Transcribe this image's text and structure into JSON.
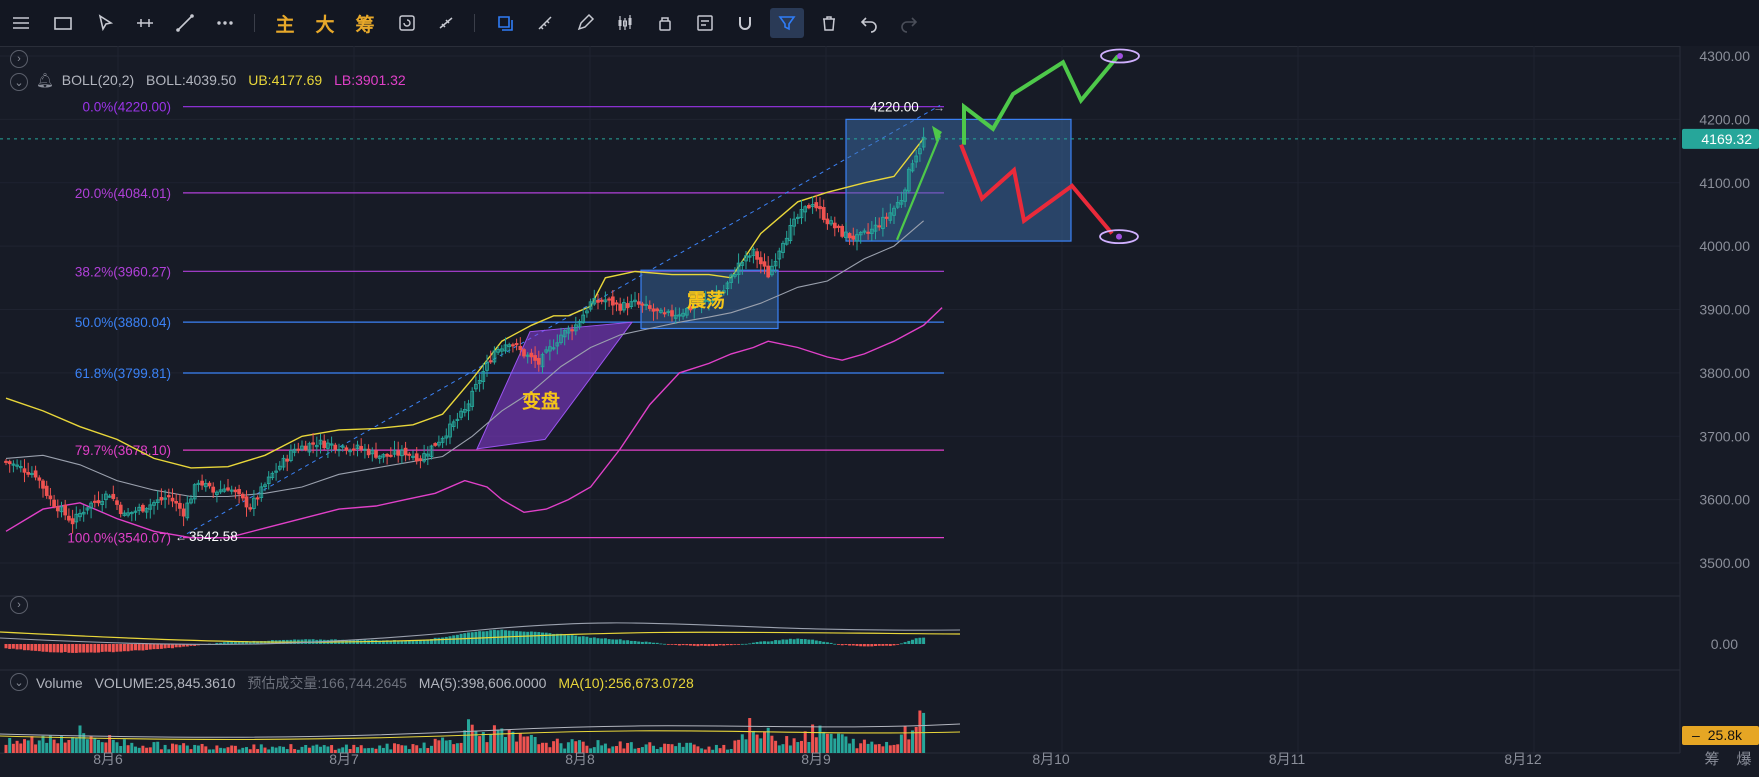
{
  "toolbar": {
    "left_tools": [
      {
        "name": "menu-icon"
      },
      {
        "name": "rectangle-icon"
      },
      {
        "name": "cursor-icon"
      },
      {
        "name": "horizontal-line-icon"
      },
      {
        "name": "trend-line-icon"
      },
      {
        "name": "more-icon"
      }
    ],
    "text_tools": [
      "主",
      "大",
      "筹"
    ],
    "right_tools": [
      {
        "name": "layers-icon"
      },
      {
        "name": "ruler-icon"
      },
      {
        "name": "pen-icon"
      },
      {
        "name": "candles-icon"
      },
      {
        "name": "lock-icon"
      },
      {
        "name": "note-icon"
      },
      {
        "name": "magnet-icon"
      },
      {
        "name": "filter-icon"
      },
      {
        "name": "trash-icon"
      },
      {
        "name": "undo-icon"
      },
      {
        "name": "redo-icon"
      }
    ]
  },
  "indicators": {
    "boll": {
      "name": "BOLL(20,2)",
      "mid": "BOLL:4039.50",
      "ub": "UB:4177.69",
      "lb": "LB:3901.32"
    },
    "volume": {
      "name": "Volume",
      "vol": "VOLUME:25,845.3610",
      "est": "预估成交量:166,744.2645",
      "ma5": "MA(5):398,606.0000",
      "ma10": "MA(10):256,673.0728"
    }
  },
  "annotations": {
    "box1_label": "变盘",
    "box2_label": "震荡",
    "high_label": "4220.00",
    "low_label": "3542.58"
  },
  "colors": {
    "bg": "#171b26",
    "up": "#26a69a",
    "down": "#ef5350",
    "ub": "#e8d63a",
    "mid": "#9aa0ad",
    "lb": "#e040c8",
    "fib_purple": "#9b34e8",
    "fib_blue": "#3b82f6",
    "fib_pink": "#e040c8",
    "green_arrow": "#4ec94a",
    "red_path": "#ea2a3a"
  },
  "chart_data": {
    "type": "candlestick",
    "price_axis": {
      "ticks": [
        "4300.00",
        "4200.00",
        "4100.00",
        "4000.00",
        "3900.00",
        "3800.00",
        "3700.00",
        "3600.00",
        "3500.00"
      ],
      "ylim": [
        3455,
        4310
      ]
    },
    "last_price": "4169.32",
    "time_axis": {
      "ticks": [
        "8月6",
        "8月7",
        "8月8",
        "8月9",
        "8月10",
        "8月11",
        "8月12"
      ]
    },
    "fib_levels": [
      {
        "label": "0.0%(4220.00)",
        "price": 4220.0,
        "color": "#9b34e8"
      },
      {
        "label": "20.0%(4084.01)",
        "price": 4084.01,
        "color": "#b040d8"
      },
      {
        "label": "38.2%(3960.27)",
        "price": 3960.27,
        "color": "#b040d8"
      },
      {
        "label": "50.0%(3880.04)",
        "price": 3880.04,
        "color": "#3b82f6"
      },
      {
        "label": "61.8%(3799.81)",
        "price": 3799.81,
        "color": "#3b82f6"
      },
      {
        "label": "79.7%(3678.10)",
        "price": 3678.1,
        "color": "#e040c8"
      },
      {
        "label": "100.0%(3540.07)",
        "price": 3540.07,
        "color": "#e040c8"
      }
    ],
    "close_anchors": [
      [
        0,
        3660
      ],
      [
        8,
        3640
      ],
      [
        12,
        3600
      ],
      [
        18,
        3565
      ],
      [
        22,
        3590
      ],
      [
        28,
        3610
      ],
      [
        32,
        3575
      ],
      [
        38,
        3590
      ],
      [
        44,
        3605
      ],
      [
        48,
        3580
      ],
      [
        52,
        3630
      ],
      [
        56,
        3612
      ],
      [
        60,
        3620
      ],
      [
        66,
        3588
      ],
      [
        72,
        3640
      ],
      [
        78,
        3680
      ],
      [
        84,
        3690
      ],
      [
        90,
        3685
      ],
      [
        96,
        3680
      ],
      [
        102,
        3668
      ],
      [
        108,
        3675
      ],
      [
        112,
        3665
      ],
      [
        118,
        3700
      ],
      [
        124,
        3740
      ],
      [
        128,
        3790
      ],
      [
        132,
        3835
      ],
      [
        136,
        3850
      ],
      [
        140,
        3830
      ],
      [
        144,
        3815
      ],
      [
        150,
        3860
      ],
      [
        154,
        3875
      ],
      [
        158,
        3910
      ],
      [
        162,
        3915
      ],
      [
        166,
        3905
      ],
      [
        170,
        3910
      ],
      [
        174,
        3900
      ],
      [
        178,
        3890
      ],
      [
        182,
        3895
      ],
      [
        186,
        3905
      ],
      [
        190,
        3915
      ],
      [
        194,
        3930
      ],
      [
        198,
        3970
      ],
      [
        202,
        3990
      ],
      [
        206,
        3955
      ],
      [
        210,
        4010
      ],
      [
        214,
        4045
      ],
      [
        218,
        4070
      ],
      [
        222,
        4040
      ],
      [
        226,
        4020
      ],
      [
        230,
        4012
      ],
      [
        234,
        4025
      ],
      [
        238,
        4045
      ],
      [
        242,
        4075
      ],
      [
        245,
        4135
      ],
      [
        248,
        4169
      ]
    ],
    "bands": {
      "ub": [
        [
          0,
          3760
        ],
        [
          10,
          3740
        ],
        [
          20,
          3715
        ],
        [
          30,
          3695
        ],
        [
          40,
          3665
        ],
        [
          50,
          3650
        ],
        [
          60,
          3652
        ],
        [
          70,
          3670
        ],
        [
          80,
          3700
        ],
        [
          90,
          3710
        ],
        [
          100,
          3712
        ],
        [
          110,
          3718
        ],
        [
          118,
          3735
        ],
        [
          126,
          3790
        ],
        [
          134,
          3850
        ],
        [
          142,
          3875
        ],
        [
          148,
          3890
        ],
        [
          152,
          3890
        ],
        [
          158,
          3905
        ],
        [
          162,
          3950
        ],
        [
          170,
          3960
        ],
        [
          180,
          3955
        ],
        [
          190,
          3955
        ],
        [
          196,
          3950
        ],
        [
          204,
          4020
        ],
        [
          214,
          4070
        ],
        [
          222,
          4085
        ],
        [
          232,
          4100
        ],
        [
          240,
          4110
        ],
        [
          248,
          4170
        ]
      ],
      "mid": [
        [
          0,
          3665
        ],
        [
          10,
          3670
        ],
        [
          20,
          3655
        ],
        [
          30,
          3630
        ],
        [
          40,
          3615
        ],
        [
          50,
          3605
        ],
        [
          60,
          3605
        ],
        [
          70,
          3610
        ],
        [
          80,
          3620
        ],
        [
          90,
          3640
        ],
        [
          100,
          3650
        ],
        [
          110,
          3660
        ],
        [
          118,
          3668
        ],
        [
          126,
          3700
        ],
        [
          134,
          3740
        ],
        [
          142,
          3770
        ],
        [
          150,
          3810
        ],
        [
          158,
          3840
        ],
        [
          166,
          3860
        ],
        [
          174,
          3870
        ],
        [
          182,
          3880
        ],
        [
          190,
          3888
        ],
        [
          196,
          3895
        ],
        [
          204,
          3910
        ],
        [
          214,
          3935
        ],
        [
          222,
          3945
        ],
        [
          232,
          3980
        ],
        [
          240,
          4000
        ],
        [
          248,
          4040
        ]
      ],
      "lb": [
        [
          0,
          3550
        ],
        [
          10,
          3585
        ],
        [
          20,
          3595
        ],
        [
          30,
          3570
        ],
        [
          40,
          3550
        ],
        [
          50,
          3540
        ],
        [
          60,
          3540
        ],
        [
          70,
          3555
        ],
        [
          80,
          3570
        ],
        [
          90,
          3585
        ],
        [
          100,
          3590
        ],
        [
          108,
          3600
        ],
        [
          116,
          3610
        ],
        [
          124,
          3630
        ],
        [
          130,
          3620
        ],
        [
          134,
          3600
        ],
        [
          140,
          3580
        ],
        [
          146,
          3585
        ],
        [
          152,
          3600
        ],
        [
          158,
          3620
        ],
        [
          166,
          3680
        ],
        [
          174,
          3750
        ],
        [
          182,
          3800
        ],
        [
          190,
          3815
        ],
        [
          196,
          3830
        ],
        [
          202,
          3840
        ],
        [
          206,
          3850
        ],
        [
          214,
          3840
        ],
        [
          222,
          3825
        ],
        [
          226,
          3820
        ],
        [
          232,
          3830
        ],
        [
          240,
          3850
        ],
        [
          248,
          3875
        ],
        [
          253,
          3903
        ]
      ]
    },
    "macd_hist_anchors": [
      [
        0,
        -8
      ],
      [
        10,
        -14
      ],
      [
        20,
        -16
      ],
      [
        30,
        -14
      ],
      [
        40,
        -10
      ],
      [
        50,
        -4
      ],
      [
        60,
        4
      ],
      [
        70,
        6
      ],
      [
        80,
        8
      ],
      [
        90,
        8
      ],
      [
        100,
        7
      ],
      [
        110,
        6
      ],
      [
        118,
        12
      ],
      [
        126,
        22
      ],
      [
        134,
        26
      ],
      [
        142,
        22
      ],
      [
        150,
        18
      ],
      [
        158,
        12
      ],
      [
        166,
        8
      ],
      [
        174,
        3
      ],
      [
        182,
        -2
      ],
      [
        190,
        -4
      ],
      [
        196,
        -2
      ],
      [
        204,
        4
      ],
      [
        214,
        10
      ],
      [
        220,
        6
      ],
      [
        226,
        -2
      ],
      [
        232,
        -4
      ],
      [
        240,
        -3
      ],
      [
        246,
        10
      ],
      [
        253,
        14
      ]
    ],
    "volume_anchors": [
      [
        0,
        10
      ],
      [
        20,
        20
      ],
      [
        30,
        12
      ],
      [
        40,
        8
      ],
      [
        50,
        7
      ],
      [
        60,
        8
      ],
      [
        70,
        7
      ],
      [
        80,
        6
      ],
      [
        90,
        7
      ],
      [
        100,
        6
      ],
      [
        110,
        8
      ],
      [
        120,
        14
      ],
      [
        126,
        28
      ],
      [
        132,
        20
      ],
      [
        140,
        14
      ],
      [
        150,
        10
      ],
      [
        160,
        9
      ],
      [
        170,
        8
      ],
      [
        180,
        8
      ],
      [
        190,
        7
      ],
      [
        196,
        7
      ],
      [
        200,
        26
      ],
      [
        204,
        20
      ],
      [
        210,
        14
      ],
      [
        220,
        22
      ],
      [
        230,
        10
      ],
      [
        240,
        9
      ],
      [
        244,
        30
      ],
      [
        246,
        45
      ],
      [
        253,
        12
      ]
    ],
    "projection": {
      "scenario_up": [
        [
          4000,
          4000
        ],
        [
          4180,
          4180
        ]
      ],
      "green_path": [
        4160,
        4220,
        4185,
        4240,
        4290,
        4230,
        4300
      ],
      "red_path": [
        4160,
        4075,
        4120,
        4040,
        4060,
        4095,
        4020
      ]
    }
  }
}
